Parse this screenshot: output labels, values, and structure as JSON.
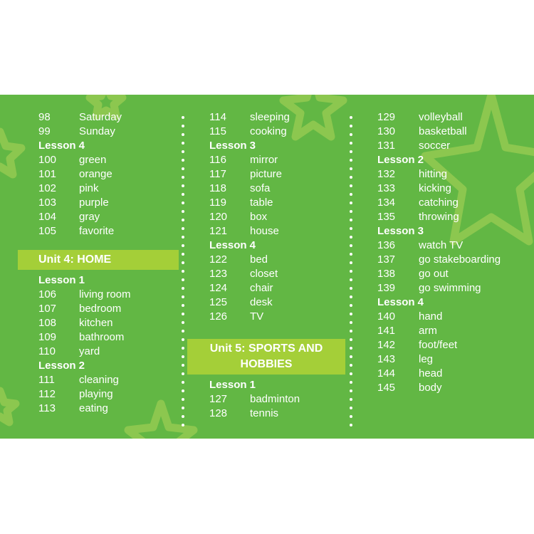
{
  "col1": {
    "top_rows": [
      {
        "num": "98",
        "word": "Saturday"
      },
      {
        "num": "99",
        "word": "Sunday"
      }
    ],
    "lesson4_label": "Lesson 4",
    "lesson4_rows": [
      {
        "num": "100",
        "word": "green"
      },
      {
        "num": "101",
        "word": "orange"
      },
      {
        "num": "102",
        "word": "pink"
      },
      {
        "num": "103",
        "word": "purple"
      },
      {
        "num": "104",
        "word": "gray"
      },
      {
        "num": "105",
        "word": "favorite"
      }
    ],
    "unit_title": "Unit 4: HOME",
    "lesson1_label": "Lesson 1",
    "lesson1_rows": [
      {
        "num": "106",
        "word": "living room"
      },
      {
        "num": "107",
        "word": "bedroom"
      },
      {
        "num": "108",
        "word": "kitchen"
      },
      {
        "num": "109",
        "word": "bathroom"
      },
      {
        "num": "110",
        "word": "yard"
      }
    ],
    "lesson2_label": "Lesson 2",
    "lesson2_rows": [
      {
        "num": "111",
        "word": "cleaning"
      },
      {
        "num": "112",
        "word": "playing"
      },
      {
        "num": "113",
        "word": "eating"
      }
    ]
  },
  "col2": {
    "top_rows": [
      {
        "num": "114",
        "word": "sleeping"
      },
      {
        "num": "115",
        "word": "cooking"
      }
    ],
    "lesson3_label": "Lesson 3",
    "lesson3_rows": [
      {
        "num": "116",
        "word": "mirror"
      },
      {
        "num": "117",
        "word": "picture"
      },
      {
        "num": "118",
        "word": "sofa"
      },
      {
        "num": "119",
        "word": "table"
      },
      {
        "num": "120",
        "word": "box"
      },
      {
        "num": "121",
        "word": "house"
      }
    ],
    "lesson4_label": "Lesson 4",
    "lesson4_rows": [
      {
        "num": "122",
        "word": "bed"
      },
      {
        "num": "123",
        "word": "closet"
      },
      {
        "num": "124",
        "word": "chair"
      },
      {
        "num": "125",
        "word": "desk"
      },
      {
        "num": "126",
        "word": "TV"
      }
    ],
    "unit_title_line1": "Unit 5: SPORTS AND",
    "unit_title_line2": "HOBBIES",
    "lesson1_label": "Lesson 1",
    "lesson1_rows": [
      {
        "num": "127",
        "word": "badminton"
      },
      {
        "num": "128",
        "word": "tennis"
      }
    ]
  },
  "col3": {
    "top_rows": [
      {
        "num": "129",
        "word": "volleyball"
      },
      {
        "num": "130",
        "word": "basketball"
      },
      {
        "num": "131",
        "word": "soccer"
      }
    ],
    "lesson2_label": "Lesson 2",
    "lesson2_rows": [
      {
        "num": "132",
        "word": "hitting"
      },
      {
        "num": "133",
        "word": "kicking"
      },
      {
        "num": "134",
        "word": "catching"
      },
      {
        "num": "135",
        "word": "throwing"
      }
    ],
    "lesson3_label": "Lesson 3",
    "lesson3_rows": [
      {
        "num": "136",
        "word": "watch TV"
      },
      {
        "num": "137",
        "word": "go stakeboarding"
      },
      {
        "num": "138",
        "word": "go out"
      },
      {
        "num": "139",
        "word": "go swimming"
      }
    ],
    "lesson4_label": "Lesson 4",
    "lesson4_rows": [
      {
        "num": "140",
        "word": "hand"
      },
      {
        "num": "141",
        "word": "arm"
      },
      {
        "num": "142",
        "word": "foot/feet"
      },
      {
        "num": "143",
        "word": "leg"
      },
      {
        "num": "144",
        "word": "head"
      },
      {
        "num": "145",
        "word": "body"
      }
    ]
  },
  "colors": {
    "background": "#62b744",
    "unit_band": "#a4cf38",
    "star_outline": "#8cc74f",
    "text": "#ffffff"
  },
  "icons": [
    "star-outline-icon"
  ]
}
